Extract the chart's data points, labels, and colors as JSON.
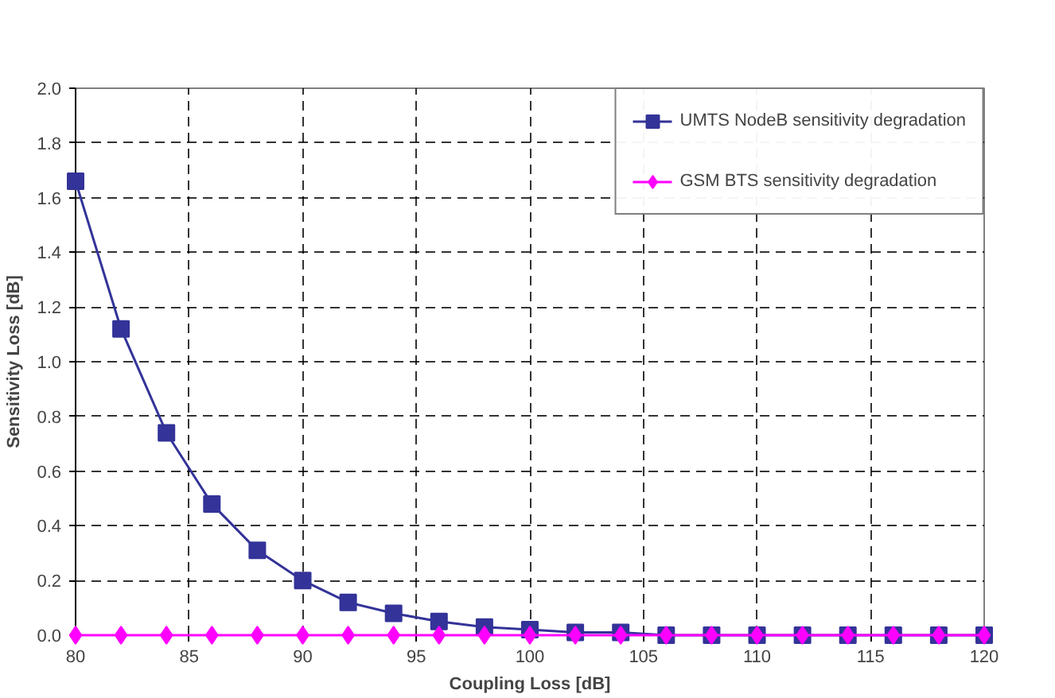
{
  "chart_data": {
    "type": "line",
    "xlabel": "Coupling Loss [dB]",
    "ylabel": "Sensitivity Loss [dB]",
    "x": [
      80,
      82,
      84,
      86,
      88,
      90,
      92,
      94,
      96,
      98,
      100,
      102,
      104,
      106,
      108,
      110,
      112,
      114,
      116,
      118,
      120
    ],
    "series": [
      {
        "name": "UMTS NodeB sensitivity degradation",
        "color": "#333399",
        "marker": "square",
        "values": [
          1.66,
          1.12,
          0.74,
          0.48,
          0.31,
          0.2,
          0.12,
          0.08,
          0.05,
          0.03,
          0.02,
          0.01,
          0.01,
          0,
          0,
          0,
          0,
          0,
          0,
          0,
          0
        ]
      },
      {
        "name": "GSM BTS sensitivity degradation",
        "color": "#ff00ff",
        "marker": "diamond",
        "values": [
          0,
          0,
          0,
          0,
          0,
          0,
          0,
          0,
          0,
          0,
          0,
          0,
          0,
          0,
          0,
          0,
          0,
          0,
          0,
          0,
          0
        ]
      }
    ],
    "xlim": [
      80,
      120
    ],
    "xticks": [
      80,
      85,
      90,
      95,
      100,
      105,
      110,
      115,
      120
    ],
    "ylim": [
      0,
      2
    ],
    "yticks": [
      {
        "value": 0,
        "label": "0.0"
      },
      {
        "value": 0.2,
        "label": "0.2"
      },
      {
        "value": 0.4,
        "label": "0.4"
      },
      {
        "value": 0.6,
        "label": "0.6"
      },
      {
        "value": 0.8,
        "label": "0.8"
      },
      {
        "value": 1,
        "label": "1.0"
      },
      {
        "value": 1.2,
        "label": "1.2"
      },
      {
        "value": 1.4,
        "label": "1.4"
      },
      {
        "value": 1.6,
        "label": "1.6"
      },
      {
        "value": 1.8,
        "label": "1.8"
      },
      {
        "value": 2,
        "label": "2.0"
      }
    ],
    "grid": true,
    "legend": "top right",
    "line_style": "solid"
  }
}
